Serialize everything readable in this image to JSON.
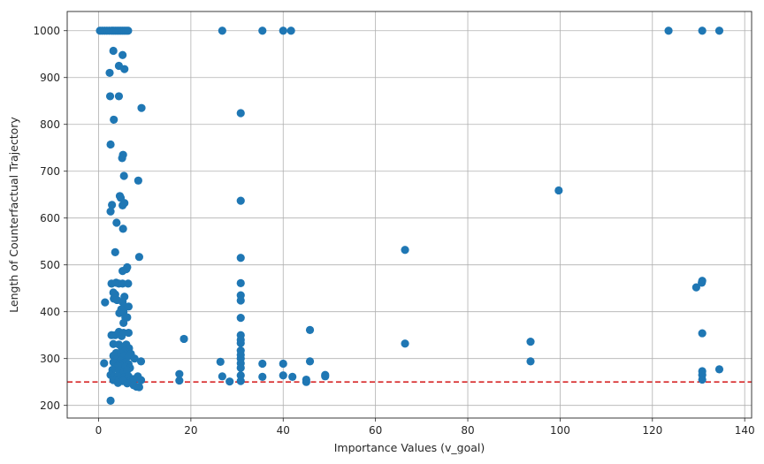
{
  "chart_data": {
    "type": "scatter",
    "title": "",
    "xlabel": "Importance Values (v_goal)",
    "ylabel": "Length of Counterfactual Trajectory",
    "xlim": [
      -6.8,
      141.5
    ],
    "ylim": [
      173,
      1041
    ],
    "xticks": [
      0,
      20,
      40,
      60,
      80,
      100,
      120,
      140
    ],
    "yticks": [
      200,
      300,
      400,
      500,
      600,
      700,
      800,
      900,
      1000
    ],
    "grid": true,
    "point_color": "#1f77b4",
    "reference_line": {
      "y": 250,
      "color": "#d62728",
      "style": "dashed"
    },
    "points": [
      [
        0.3,
        1000
      ],
      [
        0.8,
        1000
      ],
      [
        1.3,
        1000
      ],
      [
        1.8,
        1000
      ],
      [
        2.3,
        1000
      ],
      [
        2.8,
        1000
      ],
      [
        3.2,
        1000
      ],
      [
        3.6,
        1000
      ],
      [
        4.0,
        1000
      ],
      [
        4.4,
        1000
      ],
      [
        4.8,
        1000
      ],
      [
        5.2,
        1000
      ],
      [
        5.6,
        1000
      ],
      [
        6.0,
        1000
      ],
      [
        6.4,
        1000
      ],
      [
        26.8,
        1000
      ],
      [
        35.5,
        1000
      ],
      [
        40.0,
        1000
      ],
      [
        41.7,
        1000
      ],
      [
        123.5,
        1000
      ],
      [
        130.8,
        1000
      ],
      [
        134.5,
        1000
      ],
      [
        3.2,
        957
      ],
      [
        5.2,
        948
      ],
      [
        4.4,
        925
      ],
      [
        5.6,
        918
      ],
      [
        2.4,
        910
      ],
      [
        2.5,
        860
      ],
      [
        4.4,
        860
      ],
      [
        3.3,
        810
      ],
      [
        9.3,
        835
      ],
      [
        30.8,
        824
      ],
      [
        2.6,
        757
      ],
      [
        5.3,
        735
      ],
      [
        5.1,
        728
      ],
      [
        5.5,
        690
      ],
      [
        8.6,
        680
      ],
      [
        30.8,
        637
      ],
      [
        4.6,
        647
      ],
      [
        4.8,
        643
      ],
      [
        5.6,
        632
      ],
      [
        5.2,
        627
      ],
      [
        2.9,
        628
      ],
      [
        2.6,
        614
      ],
      [
        3.9,
        590
      ],
      [
        5.3,
        577
      ],
      [
        99.7,
        659
      ],
      [
        66.4,
        532
      ],
      [
        3.6,
        527
      ],
      [
        8.8,
        517
      ],
      [
        30.8,
        515
      ],
      [
        6.2,
        495
      ],
      [
        6.0,
        491
      ],
      [
        5.2,
        487
      ],
      [
        130.8,
        466
      ],
      [
        130.7,
        462
      ],
      [
        129.5,
        452
      ],
      [
        2.8,
        460
      ],
      [
        3.8,
        462
      ],
      [
        4.4,
        460
      ],
      [
        5.2,
        460
      ],
      [
        6.4,
        460
      ],
      [
        30.8,
        461
      ],
      [
        3.2,
        441
      ],
      [
        3.6,
        437
      ],
      [
        5.6,
        432
      ],
      [
        30.8,
        435
      ],
      [
        30.8,
        424
      ],
      [
        1.4,
        420
      ],
      [
        3.3,
        428
      ],
      [
        4.0,
        425
      ],
      [
        5.2,
        421
      ],
      [
        5.6,
        411
      ],
      [
        6.5,
        411
      ],
      [
        4.9,
        405
      ],
      [
        5.4,
        400
      ],
      [
        4.5,
        397
      ],
      [
        5.8,
        388
      ],
      [
        6.2,
        388
      ],
      [
        30.8,
        387
      ],
      [
        5.4,
        376
      ],
      [
        45.8,
        361
      ],
      [
        130.8,
        354
      ],
      [
        4.4,
        357
      ],
      [
        5.4,
        355
      ],
      [
        6.5,
        355
      ],
      [
        2.8,
        350
      ],
      [
        3.6,
        350
      ],
      [
        5.0,
        348
      ],
      [
        30.8,
        350
      ],
      [
        18.5,
        342
      ],
      [
        30.8,
        340
      ],
      [
        30.8,
        333
      ],
      [
        66.4,
        332
      ],
      [
        93.6,
        336
      ],
      [
        3.2,
        331
      ],
      [
        4.4,
        330
      ],
      [
        6.0,
        330
      ],
      [
        5.0,
        324
      ],
      [
        6.6,
        322
      ],
      [
        5.6,
        316
      ],
      [
        30.8,
        317
      ],
      [
        3.8,
        312
      ],
      [
        4.8,
        310
      ],
      [
        6.0,
        308
      ],
      [
        7.0,
        310
      ],
      [
        30.8,
        308
      ],
      [
        3.2,
        306
      ],
      [
        5.4,
        305
      ],
      [
        6.5,
        305
      ],
      [
        7.8,
        300
      ],
      [
        30.8,
        300
      ],
      [
        3.8,
        298
      ],
      [
        4.8,
        295
      ],
      [
        5.8,
        292
      ],
      [
        9.2,
        294
      ],
      [
        26.4,
        293
      ],
      [
        45.8,
        294
      ],
      [
        93.6,
        294
      ],
      [
        1.2,
        290
      ],
      [
        3.2,
        292
      ],
      [
        4.5,
        288
      ],
      [
        6.5,
        288
      ],
      [
        35.5,
        289
      ],
      [
        40.0,
        289
      ],
      [
        30.8,
        290
      ],
      [
        4.2,
        284
      ],
      [
        5.8,
        282
      ],
      [
        6.8,
        280
      ],
      [
        30.8,
        280
      ],
      [
        3.0,
        276
      ],
      [
        4.5,
        274
      ],
      [
        5.4,
        270
      ],
      [
        6.2,
        275
      ],
      [
        134.5,
        277
      ],
      [
        130.8,
        273
      ],
      [
        130.8,
        265
      ],
      [
        17.5,
        267
      ],
      [
        49.1,
        265
      ],
      [
        2.6,
        265
      ],
      [
        3.4,
        262
      ],
      [
        4.2,
        262
      ],
      [
        5.6,
        260
      ],
      [
        6.5,
        262
      ],
      [
        8.5,
        262
      ],
      [
        26.8,
        262
      ],
      [
        30.8,
        264
      ],
      [
        35.5,
        261
      ],
      [
        40.0,
        264
      ],
      [
        42.0,
        261
      ],
      [
        49.1,
        262
      ],
      [
        3.2,
        254
      ],
      [
        4.4,
        255
      ],
      [
        5.2,
        252
      ],
      [
        6.8,
        252
      ],
      [
        7.6,
        256
      ],
      [
        9.2,
        254
      ],
      [
        17.5,
        253
      ],
      [
        28.4,
        251
      ],
      [
        30.8,
        252
      ],
      [
        45.0,
        255
      ],
      [
        45.0,
        250
      ],
      [
        130.8,
        255
      ],
      [
        4.2,
        248
      ],
      [
        6.2,
        247
      ],
      [
        7.6,
        243
      ],
      [
        8.2,
        240
      ],
      [
        8.8,
        239
      ],
      [
        2.6,
        210
      ]
    ]
  }
}
